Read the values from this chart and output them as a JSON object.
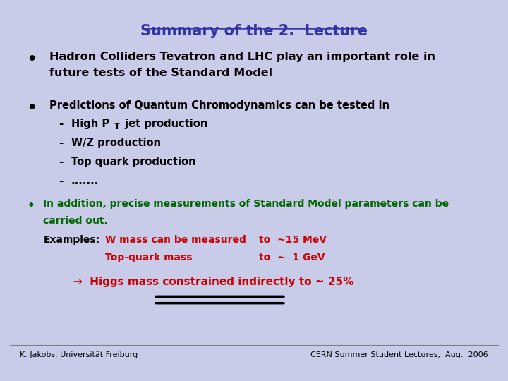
{
  "title": "Summary of the 2.  Lecture",
  "bg_color": "#c8cce8",
  "title_color": "#3333aa",
  "black": "#000000",
  "green": "#006600",
  "darkred": "#cc0000",
  "footer_left": "K. Jakobs, Universität Freiburg",
  "footer_right": "CERN Summer Student Lectures,  Aug.  2006",
  "bullet1_line1": "Hadron Colliders Tevatron and LHC play an important role in",
  "bullet1_line2": "future tests of the Standard Model",
  "bullet2_head": "Predictions of Quantum Chromodynamics can be tested in",
  "sub1a": "High P",
  "sub1b": "T",
  "sub1c": " jet production",
  "sub2": "W/Z production",
  "sub3": "Top quark production",
  "sub4": ".......",
  "bullet3_line1": "In addition, precise measurements of Standard Model parameters can be",
  "bullet3_line2": "carried out.",
  "examples_label": "Examples:",
  "ex1_red": "W mass can be measured",
  "ex1_to": "to  ~15 MeV",
  "ex2_red": "Top-quark mass",
  "ex2_to": "to  ~  1 GeV",
  "arrow_line": "→  Higgs mass constrained indirectly to ~ 25%"
}
